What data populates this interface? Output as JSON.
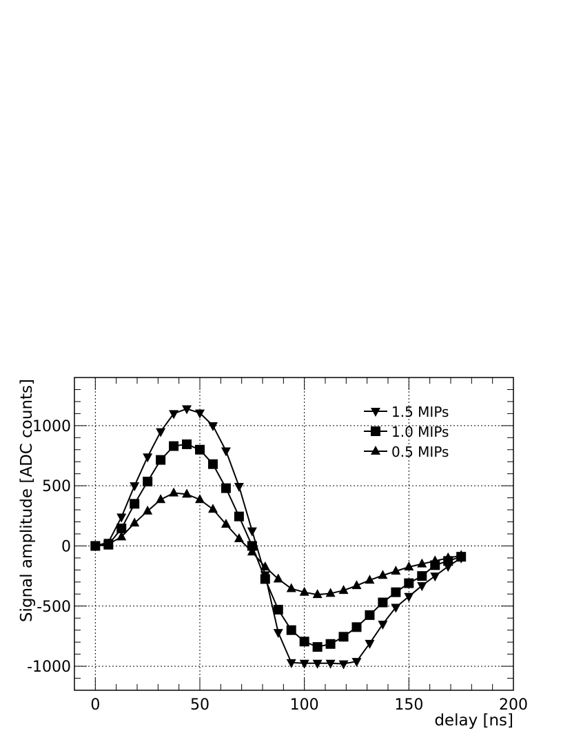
{
  "chart_data": {
    "type": "line",
    "title": "",
    "xlabel": "delay [ns]",
    "ylabel": "Signal amplitude [ADC counts]",
    "xlim": [
      -10,
      200
    ],
    "ylim": [
      -1200,
      1400
    ],
    "x_ticks": [
      0,
      50,
      100,
      150,
      200
    ],
    "y_ticks": [
      -1000,
      -500,
      0,
      500,
      1000
    ],
    "x_tick_labels": [
      "0",
      "50",
      "100",
      "150",
      "200"
    ],
    "y_tick_labels": [
      "-1000",
      "-500",
      "0",
      "500",
      "1000"
    ],
    "grid": true,
    "legend_position": "top-right",
    "x": [
      0,
      6.25,
      12.5,
      18.75,
      25,
      31.25,
      37.5,
      43.75,
      50,
      56.25,
      62.5,
      68.75,
      75,
      81.25,
      87.5,
      93.75,
      100,
      106.25,
      112.5,
      118.75,
      125,
      131.25,
      137.5,
      143.75,
      150,
      156.25,
      162.5,
      168.75,
      175
    ],
    "series": [
      {
        "name": "1.5 MIPs",
        "marker": "triangle-down",
        "color": "#000000",
        "values": [
          0,
          30,
          240,
          500,
          740,
          950,
          1100,
          1140,
          1105,
          1000,
          790,
          495,
          125,
          -240,
          -720,
          -970,
          -975,
          -975,
          -975,
          -980,
          -960,
          -810,
          -650,
          -510,
          -420,
          -330,
          -250,
          -170,
          -100
        ]
      },
      {
        "name": "1.0 MIPs",
        "marker": "square",
        "color": "#000000",
        "values": [
          0,
          10,
          145,
          350,
          535,
          715,
          830,
          845,
          800,
          680,
          480,
          245,
          0,
          -275,
          -530,
          -700,
          -795,
          -840,
          -815,
          -755,
          -675,
          -575,
          -470,
          -385,
          -310,
          -250,
          -160,
          -125,
          -90
        ]
      },
      {
        "name": "0.5 MIPs",
        "marker": "triangle-up",
        "color": "#000000",
        "values": [
          0,
          15,
          75,
          190,
          290,
          385,
          440,
          430,
          385,
          305,
          180,
          60,
          -50,
          -175,
          -275,
          -355,
          -385,
          -405,
          -395,
          -370,
          -330,
          -285,
          -245,
          -210,
          -175,
          -150,
          -125,
          -100,
          -80
        ]
      }
    ]
  }
}
